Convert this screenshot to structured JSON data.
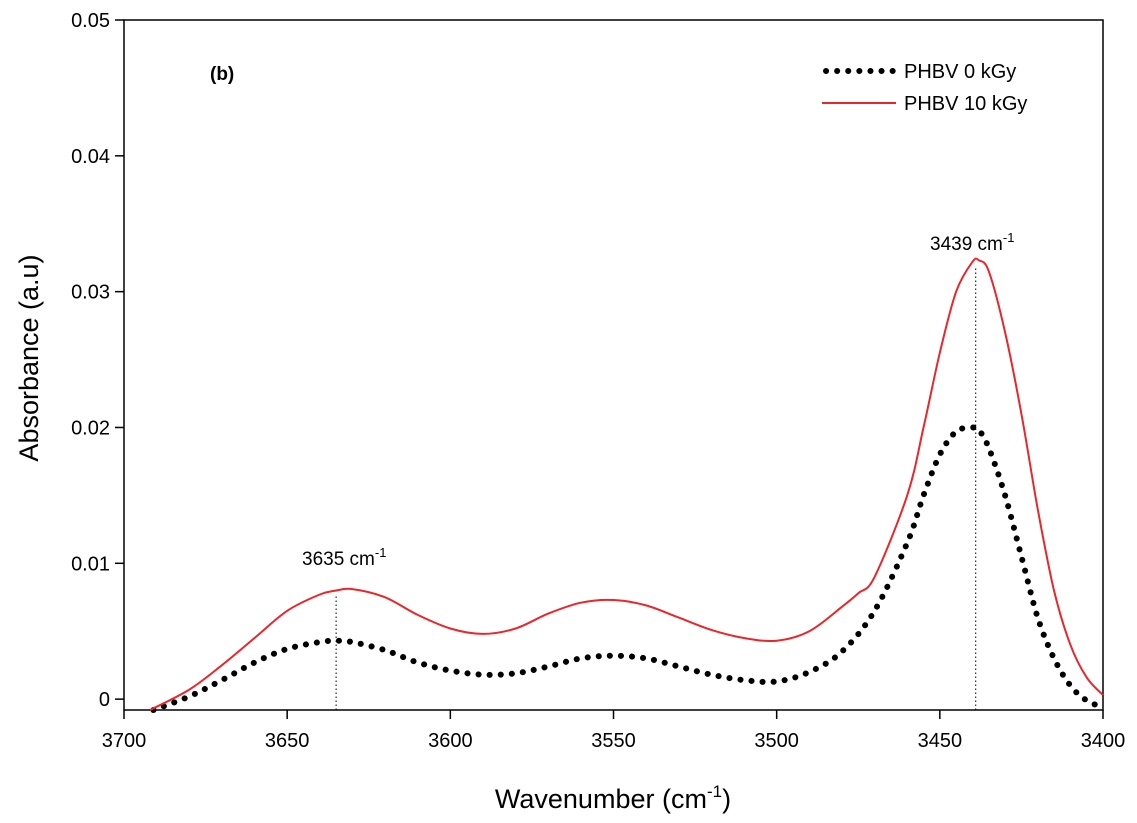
{
  "chart_data": {
    "type": "line",
    "panel_label": "(b)",
    "xlabel": "Wavenumber (cm",
    "xlabel_sup": "-1",
    "xlabel_end": ")",
    "ylabel": "Absorbance (a.u)",
    "xlim": [
      3700,
      3400
    ],
    "ylim": [
      -0.0008,
      0.05
    ],
    "x_reversed": true,
    "grid": false,
    "legend_position": "top-right",
    "x_ticks": [
      3700,
      3650,
      3600,
      3550,
      3500,
      3450,
      3400
    ],
    "x_tick_labels": [
      "3700",
      "3650",
      "3600",
      "3550",
      "3500",
      "3450",
      "3400"
    ],
    "y_ticks": [
      0,
      0.01,
      0.02,
      0.03,
      0.04,
      0.05
    ],
    "y_tick_labels": [
      "0",
      "0.01",
      "0.02",
      "0.03",
      "0.04",
      "0.05"
    ],
    "series": [
      {
        "name": "PHBV 0 kGy",
        "color": "#000000",
        "style": "dotted",
        "x": [
          3691,
          3680,
          3670,
          3660,
          3650,
          3640,
          3635,
          3630,
          3620,
          3610,
          3600,
          3590,
          3580,
          3570,
          3560,
          3550,
          3540,
          3530,
          3520,
          3510,
          3500,
          3490,
          3480,
          3470,
          3460,
          3455,
          3450,
          3445,
          3440,
          3438,
          3435,
          3430,
          3425,
          3420,
          3415,
          3410,
          3405,
          3400
        ],
        "y": [
          -0.0008,
          0.0002,
          0.0014,
          0.0027,
          0.0037,
          0.0042,
          0.0043,
          0.0042,
          0.0036,
          0.0027,
          0.0021,
          0.0018,
          0.0019,
          0.0024,
          0.003,
          0.0032,
          0.003,
          0.0024,
          0.0018,
          0.0014,
          0.0013,
          0.002,
          0.0035,
          0.0065,
          0.0115,
          0.015,
          0.018,
          0.0197,
          0.02,
          0.0198,
          0.0185,
          0.015,
          0.0105,
          0.006,
          0.003,
          0.001,
          -0.0001,
          -0.0006
        ]
      },
      {
        "name": "PHBV 10 kGy",
        "color": "#e8262c",
        "style": "solid",
        "x": [
          3692,
          3680,
          3670,
          3660,
          3650,
          3640,
          3635,
          3630,
          3620,
          3610,
          3600,
          3590,
          3580,
          3570,
          3560,
          3550,
          3540,
          3530,
          3520,
          3510,
          3500,
          3490,
          3480,
          3475,
          3470,
          3460,
          3455,
          3450,
          3445,
          3440,
          3438,
          3435,
          3430,
          3425,
          3420,
          3415,
          3410,
          3405,
          3400
        ],
        "y": [
          -0.0008,
          0.0007,
          0.0025,
          0.0045,
          0.0065,
          0.0077,
          0.008,
          0.0081,
          0.0075,
          0.0062,
          0.0052,
          0.0048,
          0.0052,
          0.0063,
          0.0071,
          0.0073,
          0.0069,
          0.006,
          0.0051,
          0.0045,
          0.0043,
          0.005,
          0.0068,
          0.0078,
          0.009,
          0.015,
          0.02,
          0.0255,
          0.03,
          0.0322,
          0.0323,
          0.0315,
          0.027,
          0.021,
          0.014,
          0.008,
          0.004,
          0.0016,
          0.0003
        ]
      }
    ],
    "annotations": [
      {
        "text": "3635 cm",
        "sup": "-1",
        "x": 3635
      },
      {
        "text": "3439 cm",
        "sup": "-1",
        "x": 3439
      }
    ],
    "annotation_lines": [
      {
        "x": 3635,
        "y_top": 0.0077
      },
      {
        "x": 3439,
        "y_top": 0.0318
      }
    ]
  }
}
